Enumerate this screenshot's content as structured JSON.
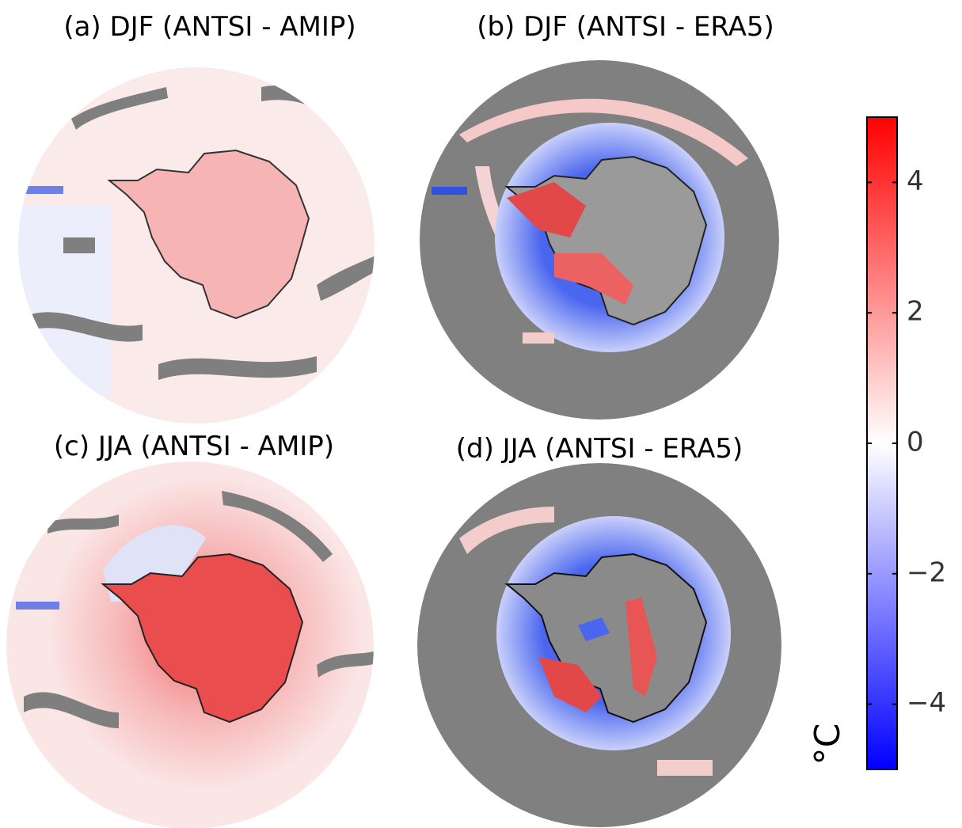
{
  "panels": [
    {
      "title": "(a) DJF (ANTSI - AMIP)"
    },
    {
      "title": "(b) DJF (ANTSI - ERA5)"
    },
    {
      "title": "(c) JJA (ANTSI - AMIP)"
    },
    {
      "title": "(d) JJA (ANTSI - ERA5)"
    }
  ],
  "colorbar": {
    "label": "°C",
    "clim": [
      -5,
      5
    ],
    "ticks": [
      4,
      2,
      0,
      {
        "value": -2,
        "label": "−2"
      },
      {
        "value": -4,
        "label": "−4"
      }
    ],
    "colormap": [
      "#0000ff",
      "#ffffff",
      "#ff0000"
    ]
  }
}
